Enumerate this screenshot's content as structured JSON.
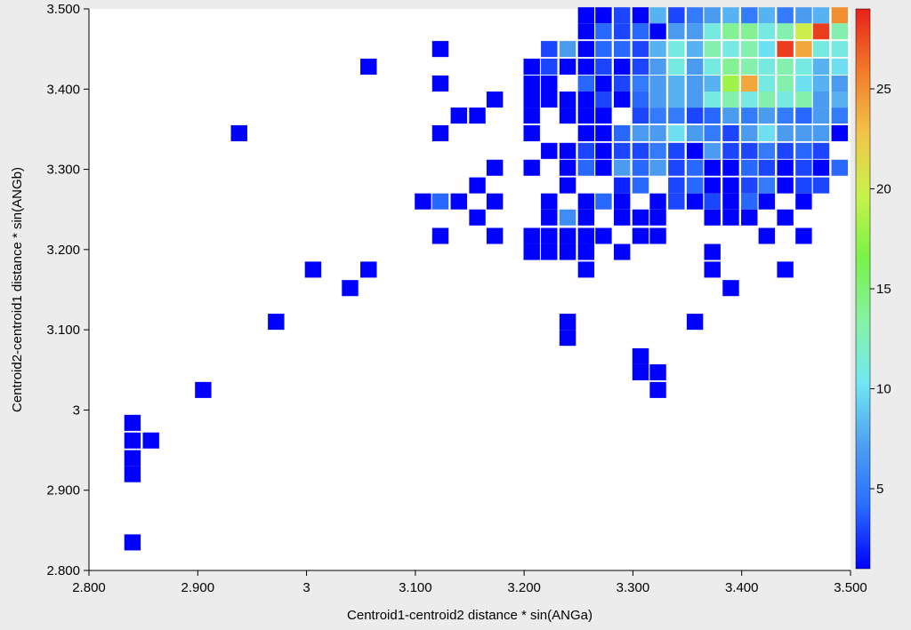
{
  "chart_data": {
    "type": "heatmap",
    "title": "",
    "xlabel": "Centroid1-centroid2 distance * sin(ANGa)",
    "ylabel": "Centroid2-centroid1 distance * sin(ANGb)",
    "xlim": [
      2.8,
      3.5
    ],
    "ylim": [
      2.8,
      3.5
    ],
    "x_ticks": [
      2.8,
      2.9,
      3.0,
      3.1,
      3.2,
      3.3,
      3.4,
      3.5
    ],
    "x_tick_labels": [
      "2.800",
      "2.900",
      "3",
      "3.100",
      "3.200",
      "3.300",
      "3.400",
      "3.500"
    ],
    "y_ticks": [
      2.8,
      2.9,
      3.0,
      3.1,
      3.2,
      3.3,
      3.4,
      3.5
    ],
    "y_tick_labels": [
      "2.800",
      "2.900",
      "3",
      "3.100",
      "3.200",
      "3.300",
      "3.400",
      "3.500"
    ],
    "bin_width": 0.0167,
    "bin_height": 0.0222,
    "colorbar": {
      "min": 1,
      "max": 29,
      "ticks": [
        5,
        10,
        15,
        20,
        25
      ],
      "tick_labels": [
        "5",
        "10",
        "15",
        "20",
        "25"
      ],
      "colormap": [
        "#0000ff",
        "#2a6cff",
        "#4ea0f0",
        "#72e8f2",
        "#86f2a2",
        "#7af24a",
        "#c8f24a",
        "#f2c44a",
        "#f27a2a",
        "#e8221a"
      ]
    },
    "cells": [
      [
        2.84,
        2.835,
        1
      ],
      [
        2.84,
        2.92,
        1
      ],
      [
        2.84,
        2.94,
        1
      ],
      [
        2.84,
        2.962,
        1
      ],
      [
        2.857,
        2.962,
        1
      ],
      [
        2.84,
        2.984,
        1
      ],
      [
        2.905,
        3.025,
        1
      ],
      [
        2.972,
        3.11,
        1
      ],
      [
        3.04,
        3.152,
        1
      ],
      [
        3.006,
        3.175,
        1
      ],
      [
        3.057,
        3.175,
        1
      ],
      [
        2.938,
        3.345,
        1
      ],
      [
        3.057,
        3.428,
        1
      ],
      [
        3.123,
        3.45,
        1
      ],
      [
        3.123,
        3.407,
        1
      ],
      [
        3.123,
        3.345,
        1
      ],
      [
        3.14,
        3.367,
        1
      ],
      [
        3.157,
        3.367,
        1
      ],
      [
        3.173,
        3.387,
        1
      ],
      [
        3.173,
        3.302,
        1
      ],
      [
        3.157,
        3.28,
        1
      ],
      [
        3.107,
        3.26,
        1
      ],
      [
        3.123,
        3.26,
        4
      ],
      [
        3.14,
        3.26,
        1
      ],
      [
        3.173,
        3.26,
        1
      ],
      [
        3.157,
        3.24,
        1
      ],
      [
        3.123,
        3.217,
        1
      ],
      [
        3.173,
        3.217,
        1
      ],
      [
        3.24,
        3.11,
        1
      ],
      [
        3.24,
        3.09,
        1
      ],
      [
        3.307,
        3.067,
        1
      ],
      [
        3.307,
        3.047,
        1
      ],
      [
        3.323,
        3.047,
        1
      ],
      [
        3.323,
        3.025,
        1
      ],
      [
        3.357,
        3.11,
        1
      ],
      [
        3.373,
        3.197,
        1
      ],
      [
        3.373,
        3.175,
        1
      ],
      [
        3.39,
        3.152,
        1
      ],
      [
        3.44,
        3.175,
        1
      ],
      [
        3.207,
        3.197,
        1
      ],
      [
        3.223,
        3.197,
        1
      ],
      [
        3.24,
        3.197,
        1
      ],
      [
        3.257,
        3.197,
        1
      ],
      [
        3.29,
        3.197,
        1
      ],
      [
        3.257,
        3.175,
        1
      ],
      [
        3.207,
        3.217,
        1
      ],
      [
        3.223,
        3.217,
        1
      ],
      [
        3.24,
        3.217,
        1
      ],
      [
        3.257,
        3.217,
        1
      ],
      [
        3.273,
        3.217,
        1
      ],
      [
        3.307,
        3.217,
        1
      ],
      [
        3.323,
        3.217,
        1
      ],
      [
        3.423,
        3.217,
        1
      ],
      [
        3.457,
        3.217,
        1
      ],
      [
        3.223,
        3.24,
        1
      ],
      [
        3.24,
        3.24,
        6
      ],
      [
        3.257,
        3.24,
        1
      ],
      [
        3.29,
        3.24,
        1
      ],
      [
        3.307,
        3.24,
        1
      ],
      [
        3.323,
        3.24,
        1
      ],
      [
        3.373,
        3.24,
        1
      ],
      [
        3.39,
        3.24,
        1
      ],
      [
        3.407,
        3.24,
        1
      ],
      [
        3.44,
        3.24,
        1
      ],
      [
        3.223,
        3.26,
        1
      ],
      [
        3.257,
        3.26,
        1
      ],
      [
        3.273,
        3.26,
        4
      ],
      [
        3.29,
        3.26,
        1
      ],
      [
        3.323,
        3.26,
        1
      ],
      [
        3.34,
        3.26,
        3
      ],
      [
        3.357,
        3.26,
        1
      ],
      [
        3.373,
        3.26,
        3
      ],
      [
        3.39,
        3.26,
        1
      ],
      [
        3.407,
        3.26,
        4
      ],
      [
        3.423,
        3.26,
        1
      ],
      [
        3.457,
        3.26,
        1
      ],
      [
        3.24,
        3.28,
        1
      ],
      [
        3.29,
        3.28,
        2
      ],
      [
        3.307,
        3.28,
        4
      ],
      [
        3.34,
        3.28,
        3
      ],
      [
        3.357,
        3.28,
        4
      ],
      [
        3.373,
        3.28,
        1
      ],
      [
        3.39,
        3.28,
        1
      ],
      [
        3.407,
        3.28,
        3
      ],
      [
        3.423,
        3.28,
        5
      ],
      [
        3.44,
        3.28,
        1
      ],
      [
        3.457,
        3.28,
        3
      ],
      [
        3.473,
        3.28,
        3
      ],
      [
        3.207,
        3.302,
        1
      ],
      [
        3.24,
        3.302,
        1
      ],
      [
        3.257,
        3.302,
        4
      ],
      [
        3.273,
        3.302,
        1
      ],
      [
        3.29,
        3.302,
        7
      ],
      [
        3.307,
        3.302,
        4
      ],
      [
        3.323,
        3.302,
        7
      ],
      [
        3.34,
        3.302,
        3
      ],
      [
        3.357,
        3.302,
        4
      ],
      [
        3.373,
        3.302,
        1
      ],
      [
        3.39,
        3.302,
        1
      ],
      [
        3.407,
        3.302,
        4
      ],
      [
        3.423,
        3.302,
        3
      ],
      [
        3.44,
        3.302,
        1
      ],
      [
        3.457,
        3.302,
        3
      ],
      [
        3.473,
        3.302,
        1
      ],
      [
        3.49,
        3.302,
        4
      ],
      [
        3.223,
        3.323,
        1
      ],
      [
        3.24,
        3.323,
        1
      ],
      [
        3.257,
        3.323,
        3
      ],
      [
        3.273,
        3.323,
        1
      ],
      [
        3.29,
        3.323,
        3
      ],
      [
        3.307,
        3.323,
        3
      ],
      [
        3.323,
        3.323,
        5
      ],
      [
        3.34,
        3.323,
        3
      ],
      [
        3.357,
        3.323,
        1
      ],
      [
        3.373,
        3.323,
        7
      ],
      [
        3.39,
        3.323,
        3
      ],
      [
        3.407,
        3.323,
        3
      ],
      [
        3.423,
        3.323,
        5
      ],
      [
        3.44,
        3.323,
        3
      ],
      [
        3.457,
        3.323,
        4
      ],
      [
        3.473,
        3.323,
        3
      ],
      [
        3.207,
        3.345,
        1
      ],
      [
        3.257,
        3.345,
        1
      ],
      [
        3.273,
        3.345,
        1
      ],
      [
        3.29,
        3.345,
        4
      ],
      [
        3.307,
        3.345,
        7
      ],
      [
        3.323,
        3.345,
        7
      ],
      [
        3.34,
        3.345,
        10
      ],
      [
        3.357,
        3.345,
        7
      ],
      [
        3.373,
        3.345,
        5
      ],
      [
        3.39,
        3.345,
        3
      ],
      [
        3.407,
        3.345,
        7
      ],
      [
        3.423,
        3.345,
        10
      ],
      [
        3.44,
        3.345,
        7
      ],
      [
        3.457,
        3.345,
        7
      ],
      [
        3.473,
        3.345,
        7
      ],
      [
        3.49,
        3.345,
        1
      ],
      [
        3.207,
        3.367,
        1
      ],
      [
        3.24,
        3.367,
        1
      ],
      [
        3.257,
        3.367,
        1
      ],
      [
        3.273,
        3.367,
        1
      ],
      [
        3.307,
        3.367,
        3
      ],
      [
        3.323,
        3.367,
        5
      ],
      [
        3.34,
        3.367,
        5
      ],
      [
        3.357,
        3.367,
        3
      ],
      [
        3.373,
        3.367,
        4
      ],
      [
        3.39,
        3.367,
        7
      ],
      [
        3.407,
        3.367,
        5
      ],
      [
        3.423,
        3.367,
        7
      ],
      [
        3.44,
        3.367,
        5
      ],
      [
        3.457,
        3.367,
        4
      ],
      [
        3.473,
        3.367,
        7
      ],
      [
        3.49,
        3.367,
        5
      ],
      [
        3.207,
        3.387,
        1
      ],
      [
        3.223,
        3.387,
        1
      ],
      [
        3.24,
        3.387,
        1
      ],
      [
        3.257,
        3.387,
        1
      ],
      [
        3.273,
        3.387,
        3
      ],
      [
        3.29,
        3.387,
        1
      ],
      [
        3.307,
        3.387,
        4
      ],
      [
        3.323,
        3.387,
        7
      ],
      [
        3.34,
        3.387,
        8
      ],
      [
        3.357,
        3.387,
        7
      ],
      [
        3.373,
        3.387,
        11
      ],
      [
        3.39,
        3.387,
        13
      ],
      [
        3.407,
        3.387,
        11
      ],
      [
        3.423,
        3.387,
        13
      ],
      [
        3.44,
        3.387,
        11
      ],
      [
        3.457,
        3.387,
        13
      ],
      [
        3.473,
        3.387,
        7
      ],
      [
        3.49,
        3.387,
        8
      ],
      [
        3.207,
        3.407,
        1
      ],
      [
        3.223,
        3.407,
        1
      ],
      [
        3.257,
        3.407,
        4
      ],
      [
        3.273,
        3.407,
        1
      ],
      [
        3.29,
        3.407,
        3
      ],
      [
        3.307,
        3.407,
        5
      ],
      [
        3.323,
        3.407,
        7
      ],
      [
        3.34,
        3.407,
        8
      ],
      [
        3.357,
        3.407,
        7
      ],
      [
        3.373,
        3.407,
        8
      ],
      [
        3.39,
        3.407,
        18
      ],
      [
        3.407,
        3.407,
        24
      ],
      [
        3.423,
        3.407,
        11
      ],
      [
        3.44,
        3.407,
        13
      ],
      [
        3.457,
        3.407,
        10
      ],
      [
        3.473,
        3.407,
        8
      ],
      [
        3.49,
        3.407,
        7
      ],
      [
        3.207,
        3.428,
        1
      ],
      [
        3.223,
        3.428,
        3
      ],
      [
        3.24,
        3.428,
        1
      ],
      [
        3.257,
        3.428,
        1
      ],
      [
        3.273,
        3.428,
        3
      ],
      [
        3.29,
        3.428,
        1
      ],
      [
        3.307,
        3.428,
        3
      ],
      [
        3.323,
        3.428,
        7
      ],
      [
        3.34,
        3.428,
        11
      ],
      [
        3.357,
        3.428,
        7
      ],
      [
        3.373,
        3.428,
        11
      ],
      [
        3.39,
        3.428,
        14
      ],
      [
        3.407,
        3.428,
        13
      ],
      [
        3.423,
        3.428,
        11
      ],
      [
        3.44,
        3.428,
        13
      ],
      [
        3.457,
        3.428,
        11
      ],
      [
        3.473,
        3.428,
        8
      ],
      [
        3.49,
        3.428,
        10
      ],
      [
        3.223,
        3.45,
        3
      ],
      [
        3.24,
        3.45,
        7
      ],
      [
        3.257,
        3.45,
        1
      ],
      [
        3.273,
        3.45,
        4
      ],
      [
        3.29,
        3.45,
        4
      ],
      [
        3.307,
        3.45,
        3
      ],
      [
        3.323,
        3.45,
        8
      ],
      [
        3.34,
        3.45,
        11
      ],
      [
        3.357,
        3.45,
        8
      ],
      [
        3.373,
        3.45,
        13
      ],
      [
        3.39,
        3.45,
        11
      ],
      [
        3.407,
        3.45,
        13
      ],
      [
        3.423,
        3.45,
        10
      ],
      [
        3.44,
        3.45,
        28
      ],
      [
        3.457,
        3.45,
        24
      ],
      [
        3.473,
        3.45,
        11
      ],
      [
        3.49,
        3.45,
        11
      ],
      [
        3.257,
        3.472,
        1
      ],
      [
        3.273,
        3.472,
        4
      ],
      [
        3.29,
        3.472,
        3
      ],
      [
        3.307,
        3.472,
        4
      ],
      [
        3.323,
        3.472,
        1
      ],
      [
        3.34,
        3.472,
        7
      ],
      [
        3.357,
        3.472,
        7
      ],
      [
        3.373,
        3.472,
        11
      ],
      [
        3.39,
        3.472,
        14
      ],
      [
        3.407,
        3.472,
        14
      ],
      [
        3.423,
        3.472,
        11
      ],
      [
        3.44,
        3.472,
        13
      ],
      [
        3.457,
        3.472,
        20
      ],
      [
        3.473,
        3.472,
        28
      ],
      [
        3.49,
        3.472,
        13
      ],
      [
        3.257,
        3.492,
        1
      ],
      [
        3.273,
        3.492,
        1
      ],
      [
        3.29,
        3.492,
        3
      ],
      [
        3.307,
        3.492,
        1
      ],
      [
        3.323,
        3.492,
        8
      ],
      [
        3.34,
        3.492,
        3
      ],
      [
        3.357,
        3.492,
        5
      ],
      [
        3.373,
        3.492,
        7
      ],
      [
        3.39,
        3.492,
        8
      ],
      [
        3.407,
        3.492,
        5
      ],
      [
        3.423,
        3.492,
        8
      ],
      [
        3.44,
        3.492,
        5
      ],
      [
        3.457,
        3.492,
        7
      ],
      [
        3.473,
        3.492,
        8
      ],
      [
        3.49,
        3.492,
        25
      ]
    ]
  }
}
